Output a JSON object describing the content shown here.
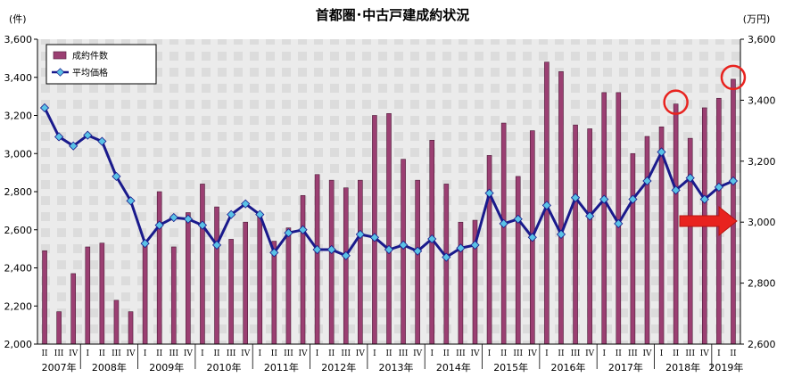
{
  "chart_data": {
    "type": "bar",
    "title": "首都圏･中古戸建成約状況",
    "y_left_unit": "(件)",
    "y_right_unit": "(万円)",
    "y_left_ticks": [
      "2,000",
      "2,200",
      "2,400",
      "2,600",
      "2,800",
      "3,000",
      "3,200",
      "3,400",
      "3,600"
    ],
    "y_right_ticks": [
      "2,600",
      "2,800",
      "3,000",
      "3,200",
      "3,400",
      "3,600"
    ],
    "ylim_left": [
      2000,
      3600
    ],
    "ylim_right": [
      2600,
      3600
    ],
    "categories": [
      "II",
      "III",
      "IV",
      "I",
      "II",
      "III",
      "IV",
      "I",
      "II",
      "III",
      "IV",
      "I",
      "II",
      "III",
      "IV",
      "I",
      "II",
      "III",
      "IV",
      "I",
      "II",
      "III",
      "IV",
      "I",
      "II",
      "III",
      "IV",
      "I",
      "II",
      "III",
      "IV",
      "I",
      "II",
      "III",
      "IV",
      "I",
      "II",
      "III",
      "IV",
      "I",
      "II",
      "III",
      "IV",
      "I",
      "II",
      "III",
      "IV",
      "I",
      "II"
    ],
    "year_labels": [
      "2007年",
      "2008年",
      "2009年",
      "2010年",
      "2011年",
      "2012年",
      "2013年",
      "2014年",
      "2015年",
      "2016年",
      "2017年",
      "2018年",
      "2019年"
    ],
    "year_start_index": [
      0,
      3,
      7,
      11,
      15,
      19,
      23,
      27,
      31,
      35,
      39,
      43,
      47
    ],
    "year_end_index": [
      2,
      6,
      10,
      14,
      18,
      22,
      26,
      30,
      34,
      38,
      42,
      46,
      48
    ],
    "series": [
      {
        "name": "成約件数",
        "kind": "bar",
        "axis": "left",
        "color": "#9b3f72",
        "values": [
          2490,
          2170,
          2370,
          2510,
          2530,
          2230,
          2170,
          2540,
          2800,
          2510,
          2690,
          2840,
          2720,
          2550,
          2640,
          2690,
          2540,
          2610,
          2780,
          2890,
          2860,
          2820,
          2860,
          3200,
          3210,
          2970,
          2860,
          3070,
          2840,
          2640,
          2650,
          2990,
          3160,
          2880,
          3120,
          3480,
          3430,
          3150,
          3130,
          3320,
          3320,
          3000,
          3090,
          3140,
          3260,
          3080,
          3240,
          3290,
          3390
        ]
      },
      {
        "name": "平均価格",
        "kind": "line",
        "axis": "right",
        "color": "#1a1a8c",
        "marker_color": "#59c2e6",
        "values": [
          3375,
          3280,
          3250,
          3285,
          3265,
          3150,
          3070,
          2930,
          2990,
          3015,
          3010,
          2990,
          2925,
          3025,
          3060,
          3025,
          2900,
          2965,
          2975,
          2910,
          2910,
          2890,
          2960,
          2950,
          2910,
          2925,
          2905,
          2945,
          2885,
          2915,
          2925,
          3095,
          2995,
          3010,
          2950,
          3055,
          2960,
          3080,
          3020,
          3075,
          2995,
          3075,
          3135,
          3230,
          3105,
          3145,
          3075,
          3115,
          3135
        ]
      }
    ],
    "highlight_circles_index": [
      44,
      48
    ],
    "legend_position": "top-left",
    "grid": false
  }
}
